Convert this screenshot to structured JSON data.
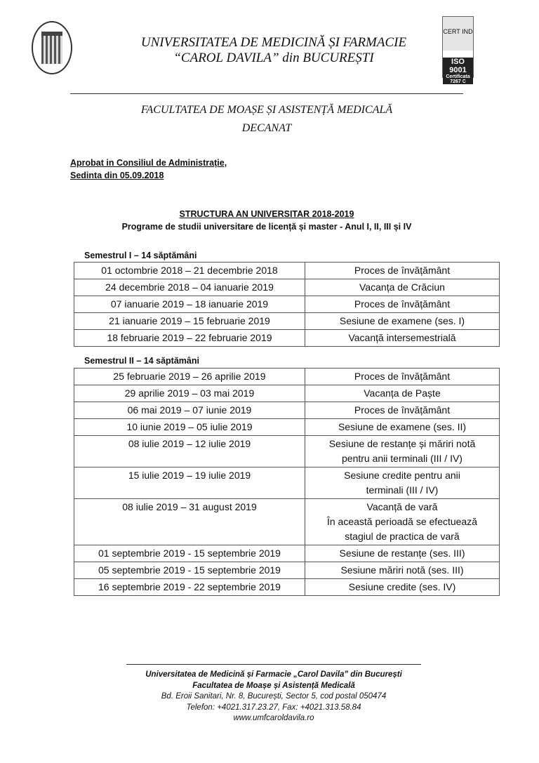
{
  "header": {
    "line1": "UNIVERSITATEA DE MEDICINĂ ȘI FARMACIE",
    "line2": "“CAROL DAVILA” din BUCUREȘTI",
    "seal_icon": "university-seal-logo",
    "cert_logo": {
      "brand": "CERT IND",
      "iso": "ISO 9001",
      "certificate": "Certificata 7267 C"
    }
  },
  "faculty": {
    "name": "FACULTATEA DE MOAȘE ȘI ASISTENȚĂ MEDICALĂ",
    "dept": "DECANAT"
  },
  "approval": {
    "line1": "Aprobat in Consiliul de Administrație,",
    "line2": "Sedinta din 05.09.2018"
  },
  "title": "STRUCTURA AN UNIVERSITAR 2018-2019",
  "subtitle": "Programe de studii universitare de licență și master - Anul I, II, III și IV",
  "semester1": {
    "label": "Semestrul I – 14 săptămâni",
    "rows": [
      {
        "period": "01 octombrie 2018 – 21 decembrie 2018",
        "activity": "Proces de învățământ"
      },
      {
        "period": "24 decembrie 2018 – 04 ianuarie 2019",
        "activity": "Vacanța de Crăciun"
      },
      {
        "period": "07 ianuarie 2019 – 18 ianuarie 2019",
        "activity": "Proces de învățământ"
      },
      {
        "period": "21 ianuarie 2019 – 15 februarie 2019",
        "activity": "Sesiune de examene (ses. I)"
      },
      {
        "period": "18 februarie 2019 – 22 februarie 2019",
        "activity": "Vacanță intersemestrială"
      }
    ]
  },
  "semester2": {
    "label": "Semestrul II – 14 săptămâni",
    "rows": [
      {
        "period": "25 februarie 2019 – 26 aprilie 2019",
        "activity": "Proces de învățământ"
      },
      {
        "period": "29 aprilie 2019 – 03 mai 2019",
        "activity": "Vacanța de Paște"
      },
      {
        "period": "06 mai 2019 – 07 iunie 2019",
        "activity": "Proces de învățământ"
      },
      {
        "period": "10 iunie 2019 – 05 iulie 2019",
        "activity": "Sesiune de examene (ses. II)"
      },
      {
        "period": "08 iulie 2019 – 12 iulie 2019",
        "activity": "Sesiune de restanțe și măriri notă\npentru anii terminali (III / IV)"
      },
      {
        "period": "15 iulie 2019 – 19 iulie 2019",
        "activity": "Sesiune credite pentru anii\nterminali (III / IV)"
      },
      {
        "period": "08 iulie 2019 – 31 august 2019",
        "activity": "Vacanță de vară\nÎn această perioadă se efectuează\nstagiul de practica de vară"
      },
      {
        "period": "01 septembrie 2019 - 15 septembrie 2019",
        "activity": "Sesiune de restanțe (ses. III)"
      },
      {
        "period": "05 septembrie 2019 - 15 septembrie 2019",
        "activity": "Sesiune măriri notă (ses. III)"
      },
      {
        "period": "16 septembrie 2019 - 22 septembrie 2019",
        "activity": "Sesiune credite (ses. IV)"
      }
    ]
  },
  "footer": {
    "line1": "Universitatea de Medicină și Farmacie „Carol Davila” din București",
    "line2": "Facultatea de Moașe și Asistență Medicală",
    "address": "Bd. Eroii Sanitari, Nr. 8, București, Sector 5, cod postal 050474",
    "phone": "Telefon:  +4021.317.23.27, Fax: +4021.313.58.84",
    "web": "www.umfcaroldavila.ro"
  }
}
